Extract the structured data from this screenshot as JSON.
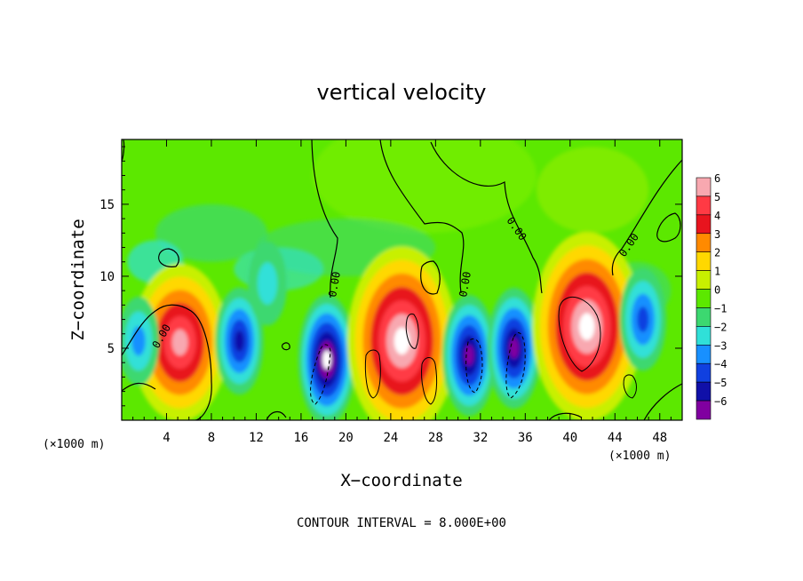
{
  "chart_data": {
    "type": "heatmap",
    "title": "vertical velocity",
    "xlabel": "X−coordinate",
    "ylabel": "Z−coordinate",
    "x_unit_left": "(×1000 m)",
    "x_unit_right": "(×1000 m)",
    "xlim": [
      0,
      50
    ],
    "ylim": [
      0,
      19.5
    ],
    "x_ticks": [
      4,
      8,
      12,
      16,
      20,
      24,
      28,
      32,
      36,
      40,
      44,
      48
    ],
    "y_ticks": [
      5,
      10,
      15
    ],
    "x_tick_labels": [
      "4",
      "8",
      "12",
      "16",
      "20",
      "24",
      "28",
      "32",
      "36",
      "40",
      "44",
      "48"
    ],
    "y_tick_labels": [
      "5",
      "10",
      "15"
    ],
    "colorbar": {
      "levels": [
        6,
        5,
        4,
        3,
        2,
        1,
        0,
        -1,
        -2,
        -3,
        -4,
        -5,
        -6
      ],
      "labels": [
        "6",
        "5",
        "4",
        "3",
        "2",
        "1",
        "0",
        "−1",
        "−2",
        "−3",
        "−4",
        "−5",
        "−6"
      ],
      "colors": [
        "#f8a8b0",
        "#ff3a44",
        "#e8141e",
        "#ff8a00",
        "#ffd800",
        "#c8f000",
        "#5ce800",
        "#3cd870",
        "#30e0d8",
        "#1890ff",
        "#1040e0",
        "#1010a8",
        "#8000a0"
      ]
    },
    "contour_labels": [
      "0.00",
      "0.00",
      "0.00",
      "0.00",
      "0.00"
    ],
    "contour_interval_text": "CONTOUR INTERVAL = 8.000E+00",
    "features": [
      {
        "kind": "updraft",
        "x": 5.2,
        "z": 5.4,
        "peak": 9
      },
      {
        "kind": "downdraft",
        "x": 10.5,
        "z": 5.5,
        "peak": -7
      },
      {
        "kind": "downdraft",
        "x": 13.0,
        "z": 9.5,
        "peak": -2
      },
      {
        "kind": "downdraft",
        "x": 18.3,
        "z": 4.2,
        "peak": -12
      },
      {
        "kind": "updraft",
        "x": 25.0,
        "z": 5.5,
        "peak": 14
      },
      {
        "kind": "downdraft",
        "x": 31.0,
        "z": 4.5,
        "peak": -10
      },
      {
        "kind": "downdraft",
        "x": 35.0,
        "z": 5.0,
        "peak": -10
      },
      {
        "kind": "updraft",
        "x": 41.5,
        "z": 6.5,
        "peak": 14
      },
      {
        "kind": "downdraft",
        "x": 46.5,
        "z": 7.0,
        "peak": -6
      },
      {
        "kind": "downdraft",
        "x": 1.5,
        "z": 5.5,
        "peak": -3
      }
    ]
  }
}
